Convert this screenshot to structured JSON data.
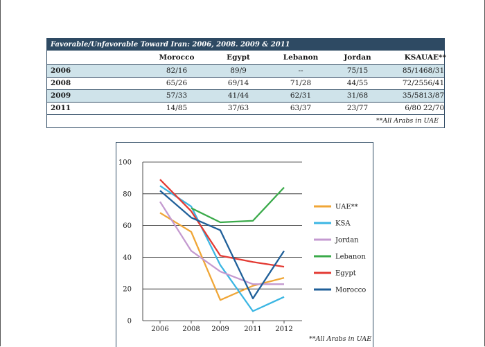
{
  "table": {
    "title": "Favorable/Unfavorable Toward Iran: 2006, 2008. 2009 & 2011",
    "columns": [
      "Morocco",
      "Egypt",
      "Lebanon",
      "Jordan",
      "KSA",
      "UAE**"
    ],
    "rows": [
      {
        "year": "2006",
        "cells": [
          "82/16",
          "89/9",
          "--",
          "75/15",
          "85/14",
          "68/31"
        ]
      },
      {
        "year": "2008",
        "cells": [
          "65/26",
          "69/14",
          "71/28",
          "44/55",
          "72/25",
          "56/41"
        ]
      },
      {
        "year": "2009",
        "cells": [
          "57/33",
          "41/44",
          "62/31",
          "31/68",
          "35/58",
          "13/87"
        ]
      },
      {
        "year": "2011",
        "cells": [
          "14/85",
          "37/63",
          "63/37",
          "23/77",
          "6/80",
          "22/70"
        ]
      }
    ],
    "note": "**All Arabs in UAE"
  },
  "chart_data": {
    "type": "line",
    "x": [
      "2006",
      "2008",
      "2009",
      "2011",
      "2012"
    ],
    "ylim": [
      0,
      100
    ],
    "yticks": [
      "0",
      "20",
      "40",
      "60",
      "80",
      "100"
    ],
    "grid": true,
    "legend": "right",
    "series": [
      {
        "name": "UAE**",
        "color": "#f0a636",
        "values": [
          68,
          56,
          13,
          22,
          27
        ]
      },
      {
        "name": "KSA",
        "color": "#3bb6e3",
        "values": [
          85,
          72,
          35,
          6,
          15
        ]
      },
      {
        "name": "Jordan",
        "color": "#c49ad0",
        "values": [
          75,
          44,
          31,
          23,
          23
        ]
      },
      {
        "name": "Lebanon",
        "color": "#3aaa4a",
        "values": [
          null,
          71,
          62,
          63,
          84
        ]
      },
      {
        "name": "Egypt",
        "color": "#e33a33",
        "values": [
          89,
          69,
          41,
          37,
          34
        ]
      },
      {
        "name": "Morocco",
        "color": "#1f5f99",
        "values": [
          82,
          65,
          57,
          14,
          44
        ]
      }
    ],
    "note": "**All Arabs in UAE"
  }
}
